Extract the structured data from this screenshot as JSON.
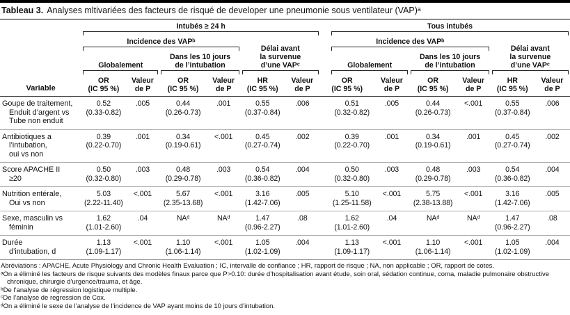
{
  "title": {
    "number": "Tableau 3.",
    "text": "Analyses mltivariées des facteurs de risqué de developer une pneumonie sous ventilateur (VAP)ᵃ"
  },
  "header": {
    "group_left": "Intubés ≥ 24 h",
    "group_right": "Tous intubés",
    "incidence": "Incidence des VAPᵇ",
    "delai": "Délai avant\nla survenue\nd’une VAPᶜ",
    "globalement": "Globalement",
    "dans_les_10_jours": "Dans les 10 jours\nde l’intubation",
    "variable": "Variable",
    "col_or": "OR\n(IC 95 %)",
    "col_valeur_p": "Valeur\nde P",
    "col_hr": "HR\n(IC 95 %)"
  },
  "rows": [
    {
      "variable": "Goupe de traitement,\nEnduit d’argent vs\nTube non enduit",
      "cells": [
        "0.52\n(0.33-0.82)",
        ".005",
        "0.44\n(0.26-0.73)",
        ".001",
        "0.55\n(0.37-0.84)",
        ".006",
        "0.51\n(0.32-0.82)",
        ".005",
        "0.44\n(0.26-0.73)",
        "<.001",
        "0.55\n(0.37-0.84)",
        ".006"
      ]
    },
    {
      "variable": "Antibiotiques a\nl’intubation,\noui vs non",
      "cells": [
        "0.39\n(0.22-0.70)",
        ".001",
        "0.34\n(0.19-0.61)",
        "<.001",
        "0.45\n(0.27-0.74)",
        ".002",
        "0.39\n(0.22-0.70)",
        ".001",
        "0.34\n(0.19-0.61)",
        ".001",
        "0.45\n(0.27-0.74)",
        ".002"
      ]
    },
    {
      "variable": "Score APACHE II\n≥20",
      "cells": [
        "0.50\n(0.32-0.80)",
        ".003",
        "0.48\n(0.29-0.78)",
        ".003",
        "0.54\n(0.36-0.82)",
        ".004",
        "0.50\n(0.32-0.80)",
        ".003",
        "0.48\n(0.29-0.78)",
        ".003",
        "0.54\n(0.36-0.82)",
        ".004"
      ]
    },
    {
      "variable": "Nutrition entérale,\nOui vs non",
      "cells": [
        "5.03\n(2.22-11.40)",
        "<.001",
        "5.67\n(2.35-13.68)",
        "<.001",
        "3.16\n(1.42-7.06)",
        ".005",
        "5.10\n(1.25-11.58)",
        "<.001",
        "5.75\n(2.38-13.88)",
        "<.001",
        "3.16\n(1.42-7.06)",
        ".005"
      ]
    },
    {
      "variable": "Sexe, masculin vs\nféminin",
      "cells": [
        "1.62\n(1.01-2.60)",
        ".04",
        "NAᵈ",
        "NAᵈ",
        "1.47\n(0.96-2.27)",
        ".08",
        "1.62\n(1.01-2.60)",
        ".04",
        "NAᵈ",
        "NAᵈ",
        "1.47\n(0.96-2.27)",
        ".08"
      ]
    },
    {
      "variable": "Durée\nd’intubation, d",
      "cells": [
        "1.13\n(1.09-1.17)",
        "<.001",
        "1.10\n(1.06-1.14)",
        "<.001",
        "1.05\n(1.02-1.09)",
        ".004",
        "1.13\n(1.09-1.17)",
        "<.001",
        "1.10\n(1.06-1.14)",
        "<.001",
        "1.05\n(1.02-1.09)",
        ".004"
      ]
    }
  ],
  "footnotes": [
    "Abréviations : APACHE, Acute Physiology and Chronic Health Evaluation ; IC, intervalle de confiance ; HR, rapport de risque ; NA, non applicable ; OR, rapport de cotes.",
    "ᵃOn a éliminé les facteurs de risque suivants des modèles finaux parce que P>0.10: durée d’hospitalisation avant étude, soin oral, sédation continue, coma, maladie pulmonaire obstructive chronique, chirurgie d’urgence/trauma, et âge.",
    "ᵇDe l’analyse de régression logistique multiple.",
    "ᶜDe l’analyse de regression de Cox.",
    "ᵈOn a éliminé le sexe de l’analyse de l’incidence de VAP ayant moins de 10 jours d’intubation."
  ]
}
